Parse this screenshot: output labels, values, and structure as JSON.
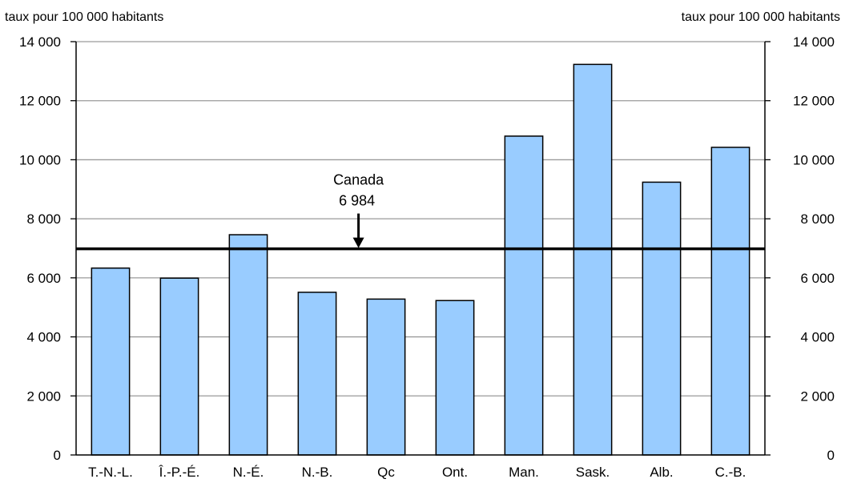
{
  "chart_data": {
    "type": "bar",
    "ylabel_left": "taux pour 100 000 habitants",
    "ylabel_right": "taux pour 100 000 habitants",
    "categories": [
      "T.-N.-L.",
      "Î.-P.-É.",
      "N.-É.",
      "N.-B.",
      "Qc",
      "Ont.",
      "Man.",
      "Sask.",
      "Alb.",
      "C.-B."
    ],
    "values": [
      6330,
      5990,
      7460,
      5510,
      5280,
      5230,
      10800,
      13230,
      9240,
      10420
    ],
    "ylim": [
      0,
      14000
    ],
    "yticks": [
      0,
      2000,
      4000,
      6000,
      8000,
      10000,
      12000,
      14000
    ],
    "ytick_labels": [
      "0",
      "2 000",
      "4 000",
      "6 000",
      "8 000",
      "10 000",
      "12 000",
      "14 000"
    ],
    "grid": true,
    "bar_color": "#99ccff",
    "reference_line": {
      "value": 6984,
      "label_name": "Canada",
      "label_value": "6 984"
    }
  }
}
